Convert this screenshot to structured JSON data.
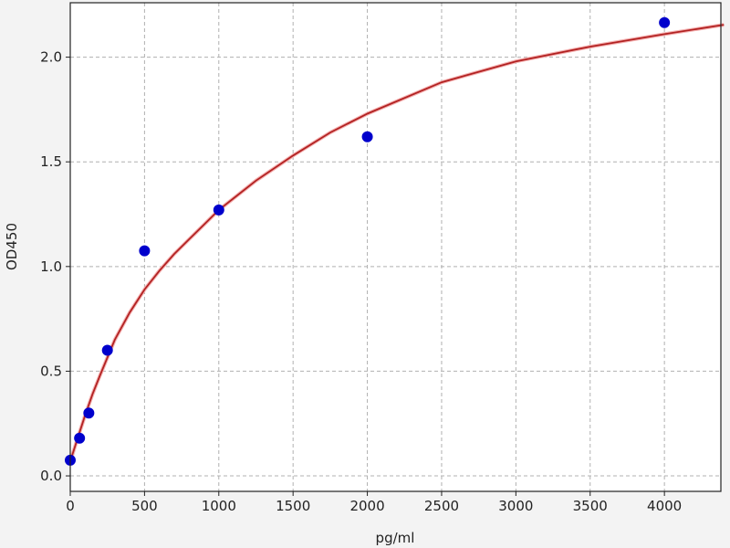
{
  "chart_data": {
    "type": "scatter",
    "title": "",
    "xlabel": "pg/ml",
    "ylabel": "OD450",
    "xlim": [
      0,
      4380
    ],
    "ylim": [
      -0.074,
      2.26
    ],
    "grid": true,
    "x_ticks": [
      0,
      500,
      1000,
      1500,
      2000,
      2500,
      3000,
      3500,
      4000
    ],
    "x_tick_labels": [
      "0",
      "500",
      "1000",
      "1500",
      "2000",
      "2500",
      "3000",
      "3500",
      "4000"
    ],
    "y_ticks": [
      0,
      0.5,
      1.0,
      1.5,
      2.0
    ],
    "y_tick_labels": [
      "0.0",
      "0.5",
      "1.0",
      "1.5",
      "2.0"
    ],
    "points": {
      "color": "#0000cc",
      "x": [
        0,
        62.5,
        125,
        250,
        500,
        1000,
        2000,
        4000
      ],
      "y": [
        0.075,
        0.18,
        0.3,
        0.6,
        1.075,
        1.27,
        1.62,
        2.165
      ]
    },
    "fit_curve": {
      "color": "#b22222",
      "x": [
        0,
        50,
        100,
        150,
        200,
        300,
        400,
        500,
        600,
        700,
        800,
        900,
        1000,
        1250,
        1500,
        1750,
        2000,
        2500,
        3000,
        3500,
        4000,
        4400
      ],
      "y": [
        0.07,
        0.18,
        0.29,
        0.39,
        0.48,
        0.65,
        0.78,
        0.89,
        0.98,
        1.06,
        1.13,
        1.2,
        1.27,
        1.41,
        1.53,
        1.64,
        1.73,
        1.88,
        1.98,
        2.05,
        2.11,
        2.155
      ]
    }
  }
}
